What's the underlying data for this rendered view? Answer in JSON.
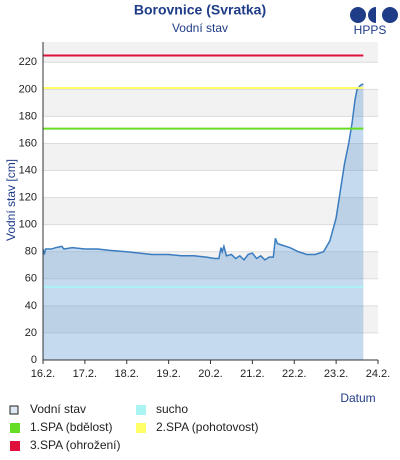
{
  "chart_data": {
    "type": "area",
    "title": "Borovnice (Svratka)",
    "subtitle": "Vodní stav",
    "logo": "HPPS",
    "y_label": "Vodní stav [cm]",
    "x_label": "Datum",
    "grid": true,
    "xlim": [
      0,
      8
    ],
    "xticks": [
      {
        "value": 0,
        "label": "16.2."
      },
      {
        "value": 1,
        "label": "17.2."
      },
      {
        "value": 2,
        "label": "18.2."
      },
      {
        "value": 3,
        "label": "19.2."
      },
      {
        "value": 4,
        "label": "20.2."
      },
      {
        "value": 5,
        "label": "21.2."
      },
      {
        "value": 6,
        "label": "22.2."
      },
      {
        "value": 7,
        "label": "23.2."
      },
      {
        "value": 8,
        "label": "24.2."
      }
    ],
    "ylim": [
      0,
      235
    ],
    "yticks": [
      0,
      20,
      40,
      60,
      80,
      100,
      120,
      140,
      160,
      180,
      200,
      220
    ],
    "series": [
      {
        "name": "Vodní stav",
        "color": "#3a7cc0",
        "x": [
          0,
          0.03,
          0.06,
          0.2,
          0.3,
          0.45,
          0.5,
          0.7,
          1.0,
          1.3,
          1.6,
          2.0,
          2.3,
          2.6,
          3.0,
          3.3,
          3.6,
          3.9,
          4.1,
          4.2,
          4.25,
          4.28,
          4.32,
          4.38,
          4.5,
          4.6,
          4.7,
          4.8,
          4.9,
          5.0,
          5.1,
          5.2,
          5.3,
          5.4,
          5.5,
          5.55,
          5.6,
          5.7,
          5.9,
          6.1,
          6.3,
          6.5,
          6.7,
          6.85,
          7.0,
          7.1,
          7.2,
          7.3,
          7.38,
          7.45,
          7.5,
          7.58,
          7.65
        ],
        "values": [
          82,
          78,
          82,
          82,
          83,
          84,
          82,
          83,
          82,
          82,
          81,
          80,
          79,
          78,
          78,
          77,
          77,
          76,
          75,
          75,
          83,
          80,
          84,
          77,
          78,
          75,
          77,
          74,
          78,
          79,
          75,
          77,
          74,
          76,
          76,
          90,
          86,
          85,
          83,
          80,
          78,
          78,
          80,
          88,
          105,
          125,
          145,
          160,
          175,
          192,
          200,
          203,
          204
        ]
      }
    ],
    "thresholds": [
      {
        "name": "1.SPA (bdělost)",
        "color": "#66dd22",
        "value": 171
      },
      {
        "name": "3.SPA (ohrožení)",
        "color": "#e0103c",
        "value": 225
      },
      {
        "name": "sucho",
        "color": "#aaf4f4",
        "value": 54
      },
      {
        "name": "2.SPA (pohotovost)",
        "color": "#ffff66",
        "value": 201
      }
    ]
  }
}
